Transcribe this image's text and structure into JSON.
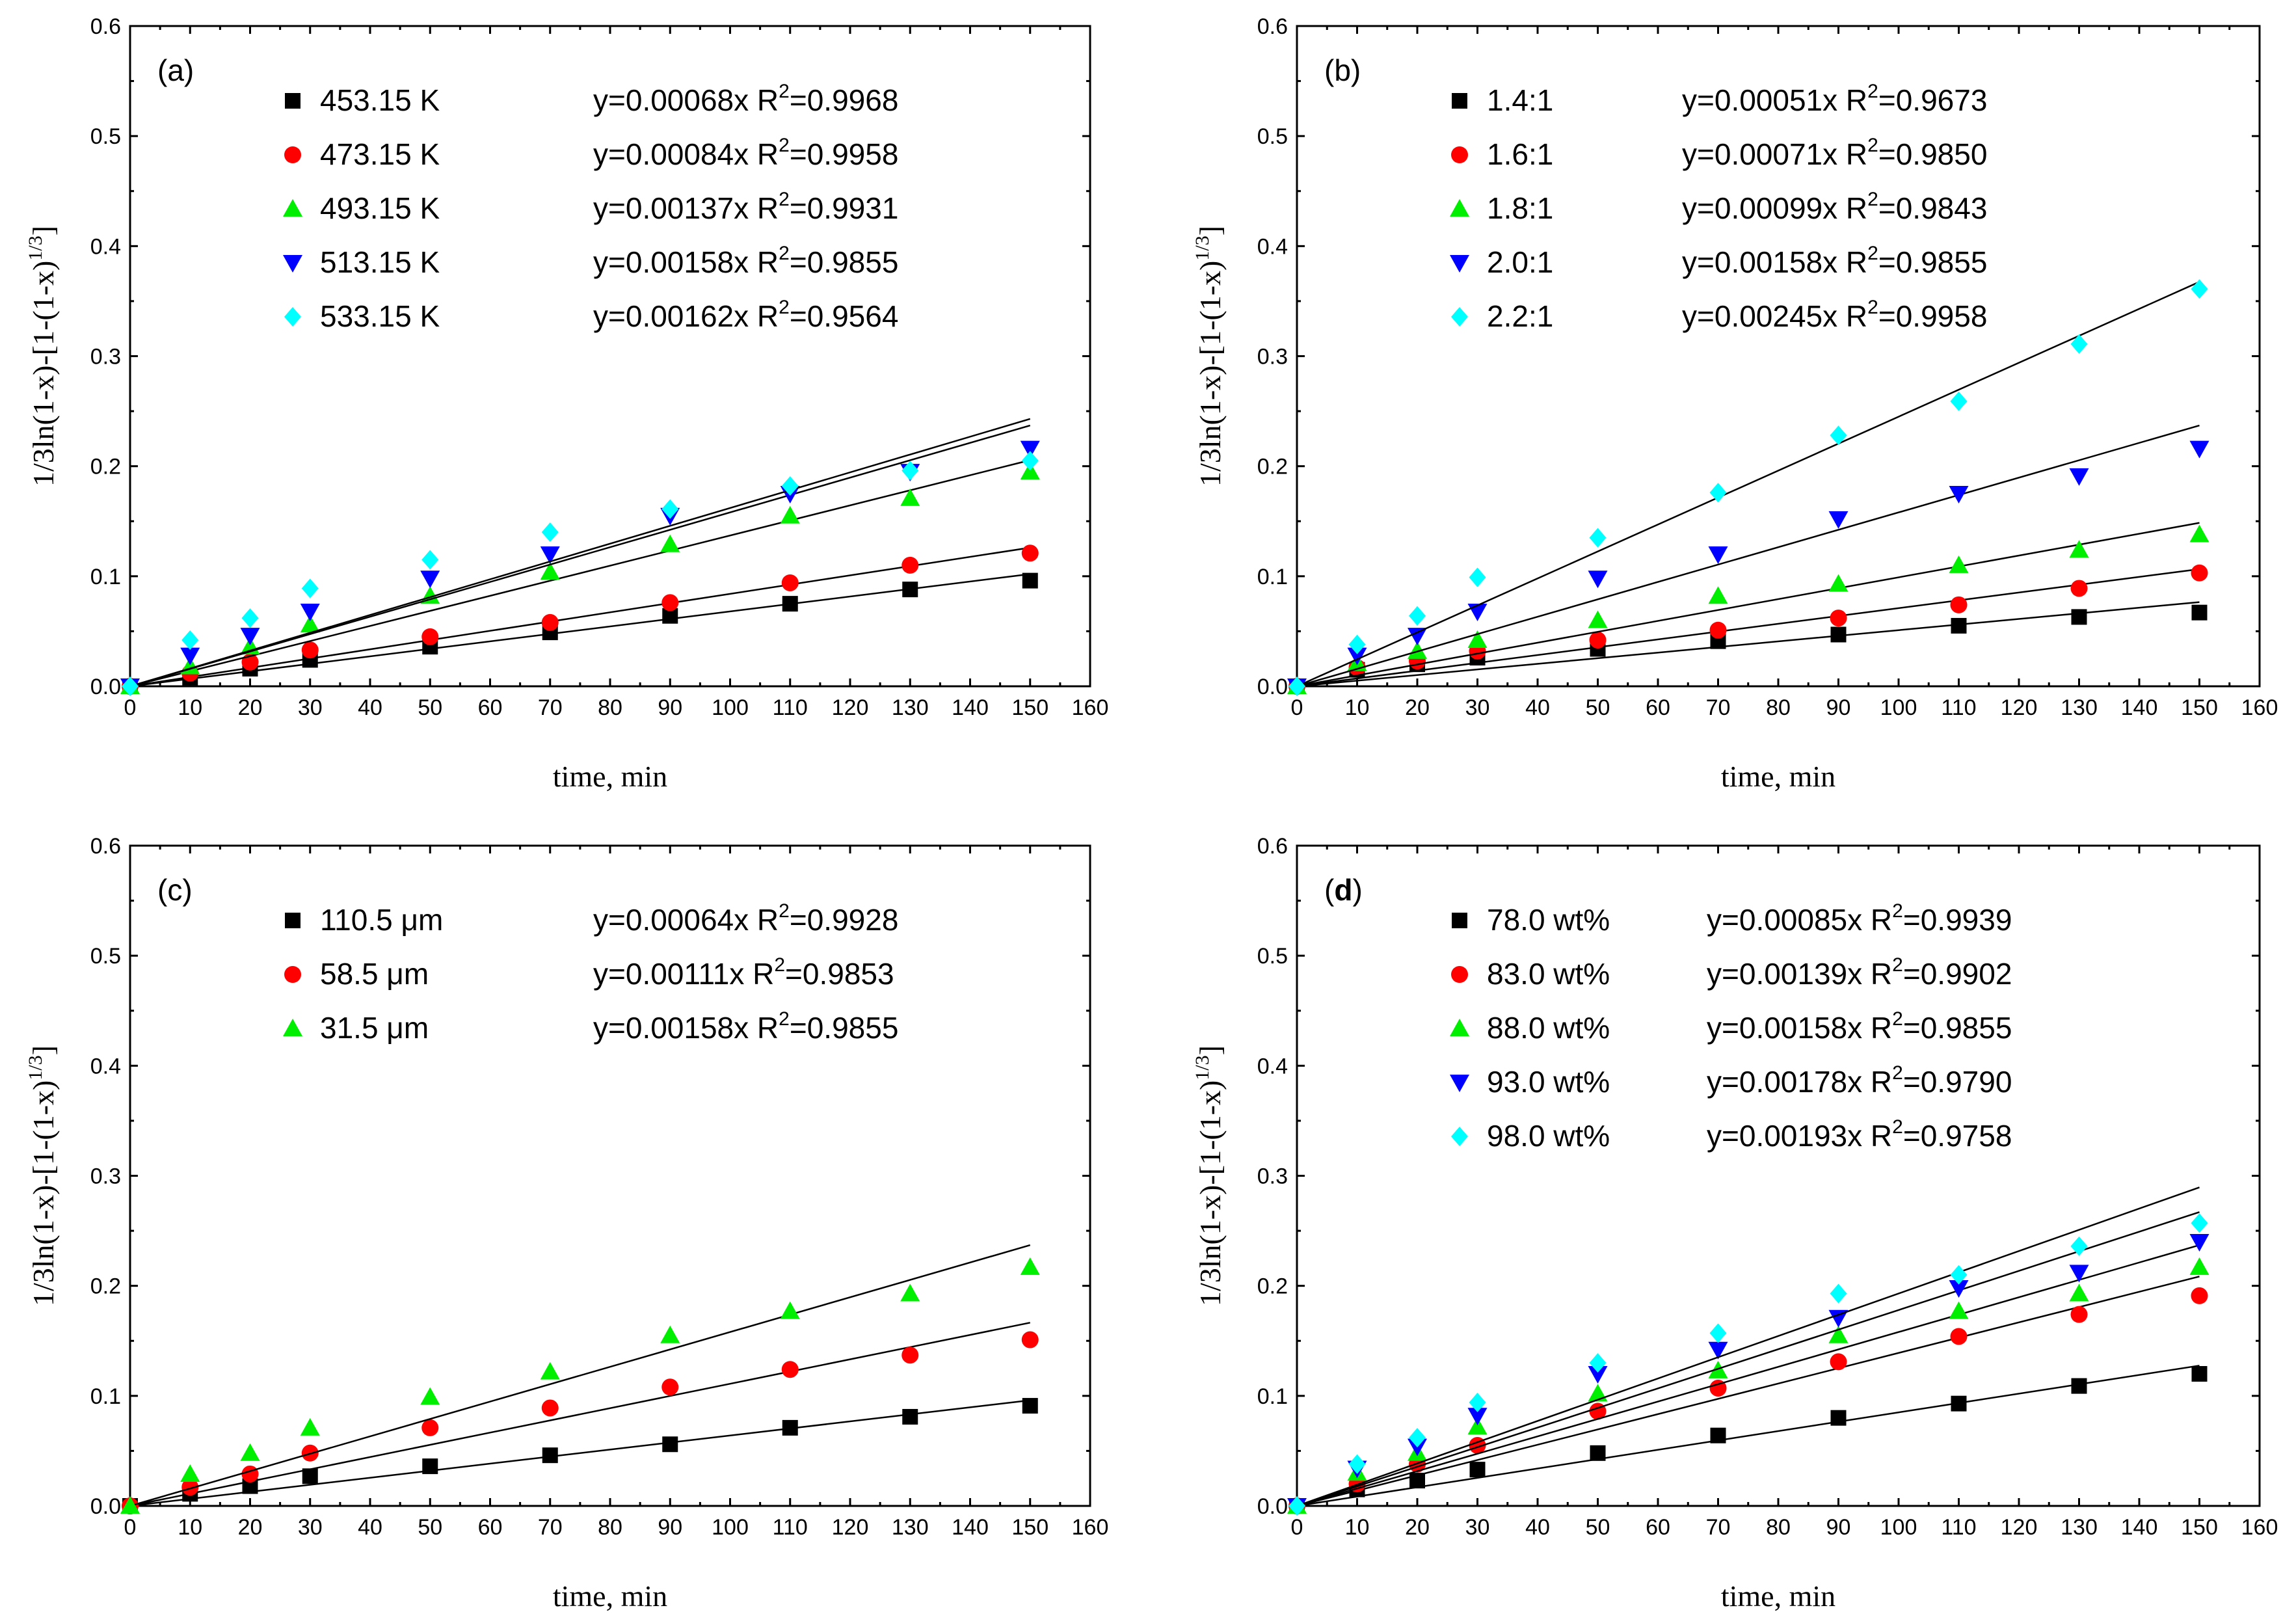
{
  "colors": {
    "black": "#000000",
    "red": "#ff0000",
    "green": "#00ee00",
    "blue": "#0000ff",
    "cyan": "#00ffff"
  },
  "chart_data": [
    {
      "type": "scatter",
      "panel_label": "(a)",
      "panel_label_bold": false,
      "xlabel": "time, min",
      "ylabel": "1/3ln(1-x)-[1-(1-x)^1/3]",
      "xlim": [
        0,
        160
      ],
      "ylim": [
        0,
        0.6
      ],
      "xticks": [
        0,
        10,
        20,
        30,
        40,
        50,
        60,
        70,
        80,
        90,
        100,
        110,
        120,
        130,
        140,
        150,
        160
      ],
      "yticks": [
        0.0,
        0.1,
        0.2,
        0.3,
        0.4,
        0.5,
        0.6
      ],
      "x": [
        0,
        10,
        20,
        30,
        50,
        70,
        90,
        110,
        130,
        150
      ],
      "series": [
        {
          "name": "453.15 K",
          "equation": "y=0.00068x",
          "r2_label": "R",
          "r2_value": "=0.9968",
          "marker": "square",
          "color": "black",
          "slope": 0.00068,
          "values": [
            0,
            0.008,
            0.016,
            0.024,
            0.036,
            0.049,
            0.064,
            0.075,
            0.088,
            0.096
          ]
        },
        {
          "name": "473.15 K",
          "equation": "y=0.00084x",
          "r2_label": "R",
          "r2_value": "=0.9958",
          "marker": "circle",
          "color": "red",
          "slope": 0.00084,
          "values": [
            0,
            0.012,
            0.022,
            0.033,
            0.045,
            0.058,
            0.076,
            0.094,
            0.11,
            0.121
          ]
        },
        {
          "name": "493.15 K",
          "equation": "y=0.00137x",
          "r2_label": "R",
          "r2_value": "=0.9931",
          "marker": "triangle-up",
          "color": "green",
          "slope": 0.00137,
          "values": [
            0,
            0.018,
            0.036,
            0.056,
            0.082,
            0.104,
            0.129,
            0.155,
            0.171,
            0.195
          ]
        },
        {
          "name": "513.15 K",
          "equation": "y=0.00158x",
          "r2_label": "R",
          "r2_value": "=0.9855",
          "marker": "triangle-down",
          "color": "blue",
          "slope": 0.00158,
          "values": [
            0,
            0.028,
            0.046,
            0.068,
            0.098,
            0.12,
            0.155,
            0.175,
            0.195,
            0.216
          ]
        },
        {
          "name": "533.15 K",
          "equation": "y=0.00162x",
          "r2_label": "R",
          "r2_value": "=0.9564",
          "marker": "diamond",
          "color": "cyan",
          "slope": 0.00162,
          "values": [
            0,
            0.042,
            0.062,
            0.089,
            0.115,
            0.14,
            0.161,
            0.182,
            0.196,
            0.205
          ]
        }
      ]
    },
    {
      "type": "scatter",
      "panel_label": "(b)",
      "panel_label_bold": false,
      "xlabel": "time, min",
      "ylabel": "1/3ln(1-x)-[1-(1-x)^1/3]",
      "xlim": [
        0,
        160
      ],
      "ylim": [
        0,
        0.6
      ],
      "xticks": [
        0,
        10,
        20,
        30,
        40,
        50,
        60,
        70,
        80,
        90,
        100,
        110,
        120,
        130,
        140,
        150,
        160
      ],
      "yticks": [
        0.0,
        0.1,
        0.2,
        0.3,
        0.4,
        0.5,
        0.6
      ],
      "x": [
        0,
        10,
        20,
        30,
        50,
        70,
        90,
        110,
        130,
        150
      ],
      "series": [
        {
          "name": "1.4:1",
          "equation": "y=0.00051x",
          "r2_label": "R",
          "r2_value": "=0.9673",
          "marker": "square",
          "color": "black",
          "slope": 0.00051,
          "values": [
            0,
            0.015,
            0.02,
            0.026,
            0.034,
            0.041,
            0.047,
            0.055,
            0.063,
            0.067
          ]
        },
        {
          "name": "1.6:1",
          "equation": "y=0.00071x",
          "r2_label": "R",
          "r2_value": "=0.9850",
          "marker": "circle",
          "color": "red",
          "slope": 0.00071,
          "values": [
            0,
            0.017,
            0.023,
            0.032,
            0.042,
            0.051,
            0.062,
            0.074,
            0.089,
            0.103
          ]
        },
        {
          "name": "1.8:1",
          "equation": "y=0.00099x",
          "r2_label": "R",
          "r2_value": "=0.9843",
          "marker": "triangle-up",
          "color": "green",
          "slope": 0.00099,
          "values": [
            0,
            0.021,
            0.032,
            0.042,
            0.06,
            0.082,
            0.093,
            0.11,
            0.124,
            0.138
          ]
        },
        {
          "name": "2.0:1",
          "equation": "y=0.00158x",
          "r2_label": "R",
          "r2_value": "=0.9855",
          "marker": "triangle-down",
          "color": "blue",
          "slope": 0.00158,
          "values": [
            0,
            0.028,
            0.046,
            0.068,
            0.098,
            0.12,
            0.152,
            0.175,
            0.191,
            0.216
          ]
        },
        {
          "name": "2.2:1",
          "equation": "y=0.00245x",
          "r2_label": "R",
          "r2_value": "=0.9958",
          "marker": "diamond",
          "color": "cyan",
          "slope": 0.00245,
          "values": [
            0,
            0.038,
            0.064,
            0.099,
            0.135,
            0.176,
            0.228,
            0.259,
            0.311,
            0.361
          ]
        }
      ]
    },
    {
      "type": "scatter",
      "panel_label": "(c)",
      "panel_label_bold": false,
      "xlabel": "time, min",
      "ylabel": "1/3ln(1-x)-[1-(1-x)^1/3]",
      "xlim": [
        0,
        160
      ],
      "ylim": [
        0,
        0.6
      ],
      "xticks": [
        0,
        10,
        20,
        30,
        40,
        50,
        60,
        70,
        80,
        90,
        100,
        110,
        120,
        130,
        140,
        150,
        160
      ],
      "yticks": [
        0.0,
        0.1,
        0.2,
        0.3,
        0.4,
        0.5,
        0.6
      ],
      "x": [
        0,
        10,
        20,
        30,
        50,
        70,
        90,
        110,
        130,
        150
      ],
      "series": [
        {
          "name": "110.5 μm",
          "equation": "y=0.00064x",
          "r2_label": "R",
          "r2_value": "=0.9928",
          "marker": "square",
          "color": "black",
          "slope": 0.00064,
          "values": [
            0,
            0.011,
            0.018,
            0.027,
            0.036,
            0.046,
            0.056,
            0.071,
            0.081,
            0.091
          ]
        },
        {
          "name": "58.5 μm",
          "equation": "y=0.00111x",
          "r2_label": "R",
          "r2_value": "=0.9853",
          "marker": "circle",
          "color": "red",
          "slope": 0.00111,
          "values": [
            0,
            0.017,
            0.029,
            0.048,
            0.071,
            0.089,
            0.108,
            0.124,
            0.137,
            0.151
          ]
        },
        {
          "name": "31.5 μm",
          "equation": "y=0.00158x",
          "r2_label": "R",
          "r2_value": "=0.9855",
          "marker": "triangle-up",
          "color": "green",
          "slope": 0.00158,
          "values": [
            0,
            0.029,
            0.048,
            0.071,
            0.099,
            0.122,
            0.155,
            0.177,
            0.193,
            0.217
          ]
        }
      ]
    },
    {
      "type": "scatter",
      "panel_label": "d",
      "panel_label_bold": true,
      "xlabel": "time, min",
      "ylabel": "1/3ln(1-x)-[1-(1-x)^1/3]",
      "xlim": [
        0,
        160
      ],
      "ylim": [
        0,
        0.6
      ],
      "xticks": [
        0,
        10,
        20,
        30,
        40,
        50,
        60,
        70,
        80,
        90,
        100,
        110,
        120,
        130,
        140,
        150,
        160
      ],
      "yticks": [
        0.0,
        0.1,
        0.2,
        0.3,
        0.4,
        0.5,
        0.6
      ],
      "x": [
        0,
        10,
        20,
        30,
        50,
        70,
        90,
        110,
        130,
        150
      ],
      "series": [
        {
          "name": "78.0 wt%",
          "equation": "y=0.00085x",
          "r2_label": "R",
          "r2_value": "=0.9939",
          "marker": "square",
          "color": "black",
          "slope": 0.00085,
          "values": [
            0,
            0.015,
            0.023,
            0.033,
            0.048,
            0.064,
            0.08,
            0.093,
            0.109,
            0.12
          ]
        },
        {
          "name": "83.0 wt%",
          "equation": "y=0.00139x",
          "r2_label": "R",
          "r2_value": "=0.9902",
          "marker": "circle",
          "color": "red",
          "slope": 0.00139,
          "values": [
            0,
            0.02,
            0.038,
            0.055,
            0.086,
            0.107,
            0.131,
            0.154,
            0.174,
            0.191
          ]
        },
        {
          "name": "88.0 wt%",
          "equation": "y=0.00158x",
          "r2_label": "R",
          "r2_value": "=0.9855",
          "marker": "triangle-up",
          "color": "green",
          "slope": 0.00158,
          "values": [
            0,
            0.03,
            0.048,
            0.072,
            0.102,
            0.123,
            0.155,
            0.177,
            0.193,
            0.217
          ]
        },
        {
          "name": "93.0 wt%",
          "equation": "y=0.00178x",
          "r2_label": "R",
          "r2_value": "=0.9790",
          "marker": "triangle-down",
          "color": "blue",
          "slope": 0.00178,
          "values": [
            0,
            0.034,
            0.054,
            0.082,
            0.12,
            0.142,
            0.171,
            0.198,
            0.212,
            0.24
          ]
        },
        {
          "name": "98.0 wt%",
          "equation": "y=0.00193x",
          "r2_label": "R",
          "r2_value": "=0.9758",
          "marker": "diamond",
          "color": "cyan",
          "slope": 0.00193,
          "values": [
            0,
            0.038,
            0.062,
            0.094,
            0.13,
            0.157,
            0.193,
            0.21,
            0.236,
            0.257
          ]
        }
      ]
    }
  ]
}
